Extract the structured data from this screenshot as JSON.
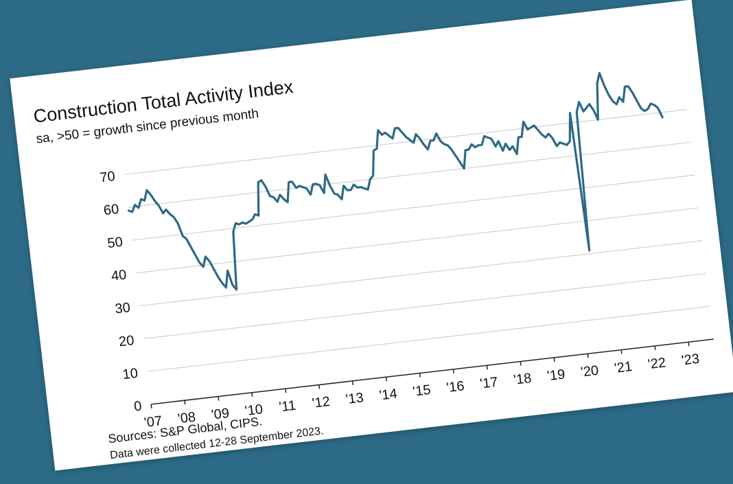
{
  "colors": {
    "background": "#2c6a86",
    "card": "#ffffff",
    "line": "#2d6a86",
    "grid": "#d0d0d0",
    "axis": "#222222"
  },
  "chart_data": {
    "type": "line",
    "title": "Construction Total Activity Index",
    "subtitle": "sa, >50 = growth since previous month",
    "xlabel": "",
    "ylabel": "",
    "ylim": [
      0,
      80
    ],
    "yticks": [
      0,
      10,
      20,
      30,
      40,
      50,
      60,
      70
    ],
    "xlim": [
      2007.0,
      2023.75
    ],
    "xticks": [
      {
        "value": 2007,
        "label": "'07"
      },
      {
        "value": 2008,
        "label": "'08"
      },
      {
        "value": 2009,
        "label": "'09"
      },
      {
        "value": 2010,
        "label": "'10"
      },
      {
        "value": 2011,
        "label": "'11"
      },
      {
        "value": 2012,
        "label": "'12"
      },
      {
        "value": 2013,
        "label": "'13"
      },
      {
        "value": 2014,
        "label": "'14"
      },
      {
        "value": 2015,
        "label": "'15"
      },
      {
        "value": 2016,
        "label": "'16"
      },
      {
        "value": 2017,
        "label": "'17"
      },
      {
        "value": 2018,
        "label": "'18"
      },
      {
        "value": 2019,
        "label": "'19"
      },
      {
        "value": 2020,
        "label": "'20"
      },
      {
        "value": 2021,
        "label": "'21"
      },
      {
        "value": 2022,
        "label": "'22"
      },
      {
        "value": 2023,
        "label": "'23"
      }
    ],
    "grid": "horizontal",
    "legend": "none",
    "series": [
      {
        "x": [
          2007.0,
          2007.1,
          2007.2,
          2007.3,
          2007.4,
          2007.5,
          2007.6,
          2007.7,
          2007.8,
          2007.9,
          2008.0,
          2008.1,
          2008.2,
          2008.3,
          2008.4,
          2008.5,
          2008.6,
          2008.7,
          2008.8,
          2008.9,
          2009.0,
          2009.1,
          2009.2,
          2009.3,
          2009.4,
          2009.5,
          2009.6,
          2009.7,
          2009.8,
          2009.9,
          2010.0,
          2010.1,
          2010.2,
          2010.3,
          2010.4,
          2010.5,
          2010.6,
          2010.7,
          2010.8,
          2010.9,
          2011.0,
          2011.1,
          2011.2,
          2011.3,
          2011.4,
          2011.5,
          2011.6,
          2011.7,
          2011.8,
          2011.9,
          2012.0,
          2012.1,
          2012.2,
          2012.3,
          2012.4,
          2012.5,
          2012.6,
          2012.7,
          2012.8,
          2012.9,
          2013.0,
          2013.1,
          2013.2,
          2013.3,
          2013.4,
          2013.5,
          2013.6,
          2013.7,
          2013.8,
          2013.9,
          2014.0,
          2014.1,
          2014.2,
          2014.3,
          2014.4,
          2014.5,
          2014.6,
          2014.7,
          2014.8,
          2014.9,
          2015.0,
          2015.1,
          2015.2,
          2015.3,
          2015.4,
          2015.5,
          2015.6,
          2015.7,
          2015.8,
          2015.9,
          2016.0,
          2016.1,
          2016.2,
          2016.3,
          2016.4,
          2016.5,
          2016.6,
          2016.7,
          2016.8,
          2016.9,
          2017.0,
          2017.1,
          2017.2,
          2017.3,
          2017.4,
          2017.5,
          2017.6,
          2017.7,
          2017.8,
          2017.9,
          2018.0,
          2018.1,
          2018.2,
          2018.3,
          2018.4,
          2018.5,
          2018.6,
          2018.7,
          2018.8,
          2018.9,
          2019.0,
          2019.1,
          2019.2,
          2019.3,
          2019.4,
          2019.5,
          2019.6,
          2019.7,
          2019.8,
          2019.9,
          2020.0,
          2020.1,
          2020.2,
          2020.3,
          2020.4,
          2020.5,
          2020.6,
          2020.7,
          2020.8,
          2020.9,
          2021.0,
          2021.1,
          2021.2,
          2021.3,
          2021.4,
          2021.5,
          2021.6,
          2021.7,
          2021.8,
          2021.9,
          2022.0,
          2022.1,
          2022.2,
          2022.3,
          2022.4,
          2022.5,
          2022.6,
          2022.7,
          2022.8,
          2022.9,
          2023.0
        ],
        "values": [
          59,
          58.5,
          60.5,
          59.5,
          62,
          61.5,
          64.5,
          63,
          61,
          59.5,
          57,
          58,
          56.5,
          55.5,
          53.5,
          49.5,
          48.5,
          46,
          43.5,
          41,
          39.5,
          42.5,
          41,
          38.5,
          36,
          34,
          32.5,
          37.5,
          33,
          31.5,
          49,
          51.5,
          51,
          51.5,
          51,
          51.5,
          52,
          53.5,
          53,
          63,
          63.5,
          61.5,
          58.5,
          58,
          56.5,
          58.5,
          57,
          56,
          62,
          62,
          60,
          60.5,
          60,
          59.5,
          57.5,
          60.5,
          60.5,
          60,
          57.5,
          63,
          59.5,
          57,
          56.5,
          55,
          59,
          57.5,
          57.5,
          59,
          58,
          58,
          57.5,
          57,
          60,
          61,
          68.5,
          69,
          74.5,
          73,
          73.5,
          72.5,
          71.5,
          74.5,
          74.5,
          73,
          71.5,
          70.5,
          69.5,
          72,
          70.5,
          68.5,
          67,
          69.5,
          69.5,
          71.5,
          69,
          68,
          67.5,
          66,
          64,
          62,
          60,
          65.5,
          65.5,
          67,
          66,
          66.5,
          66.5,
          69,
          68.5,
          68,
          65.5,
          67,
          64,
          66,
          64,
          65,
          62.5,
          67.5,
          67.5,
          72,
          69.5,
          70,
          70.5,
          69,
          67.5,
          66.5,
          67.5,
          66,
          63.5,
          64.5,
          64,
          63.5,
          64.5,
          73,
          31,
          73,
          76,
          73,
          74,
          75,
          73,
          70,
          81,
          84,
          80,
          77,
          75,
          74,
          76,
          74.5,
          79,
          79,
          77,
          74.5,
          72,
          71,
          71.5,
          73,
          72.5,
          71.5,
          68.5
        ]
      }
    ]
  },
  "footer": {
    "sources": "Sources: S&P Global, CIPS.",
    "note": "Data were collected 12-28 September 2023."
  }
}
